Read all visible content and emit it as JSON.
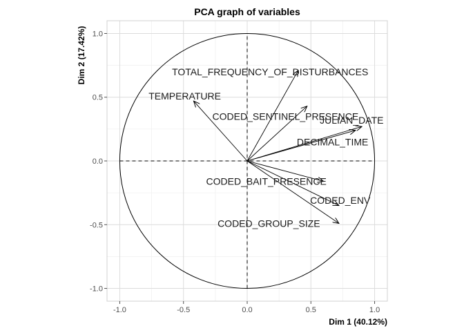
{
  "chart_data": {
    "type": "scatter",
    "subtype": "pca-correlation-circle",
    "title": "PCA graph of variables",
    "xlabel": "Dim 1 (40.12%)",
    "ylabel": "Dim 2 (17.42%)",
    "xlim": [
      -1.1,
      1.1
    ],
    "ylim": [
      -1.1,
      1.1
    ],
    "xticks": [
      -1.0,
      -0.5,
      0.0,
      0.5,
      1.0
    ],
    "xtick_labels": [
      "-1.0",
      "-0.5",
      "0.0",
      "0.5",
      "1.0"
    ],
    "yticks": [
      -1.0,
      -0.5,
      0.0,
      0.5,
      1.0
    ],
    "ytick_labels": [
      "-1.0",
      "-0.5",
      "0.0",
      "0.5",
      "1.0"
    ],
    "grid": true,
    "unit_circle": true,
    "reference_lines": "dashed at x=0 and y=0",
    "vectors": [
      {
        "name": "TOTAL_FREQUENCY_OF_DISTURBANCES",
        "x": 0.4,
        "y": 0.71,
        "label_x": 0.18,
        "label_y": 0.7
      },
      {
        "name": "TEMPERATURE",
        "x": -0.42,
        "y": 0.47,
        "label_x": -0.49,
        "label_y": 0.51
      },
      {
        "name": "CODED_SENTINEL_PRESENCE",
        "x": 0.47,
        "y": 0.43,
        "label_x": 0.3,
        "label_y": 0.35
      },
      {
        "name": "JULIAN_DATE",
        "x": 0.9,
        "y": 0.27,
        "label_x": 0.82,
        "label_y": 0.32
      },
      {
        "name": "DECIMAL_TIME",
        "x": 0.85,
        "y": 0.24,
        "label_x": 0.67,
        "label_y": 0.15
      },
      {
        "name": "CODED_BAIT_PRESENCE",
        "x": 0.6,
        "y": -0.16,
        "label_x": 0.15,
        "label_y": -0.16
      },
      {
        "name": "CODED_ENV",
        "x": 0.72,
        "y": -0.35,
        "label_x": 0.73,
        "label_y": -0.31
      },
      {
        "name": "CODED_GROUP_SIZE",
        "x": 0.72,
        "y": -0.49,
        "label_x": 0.17,
        "label_y": -0.49
      }
    ]
  }
}
